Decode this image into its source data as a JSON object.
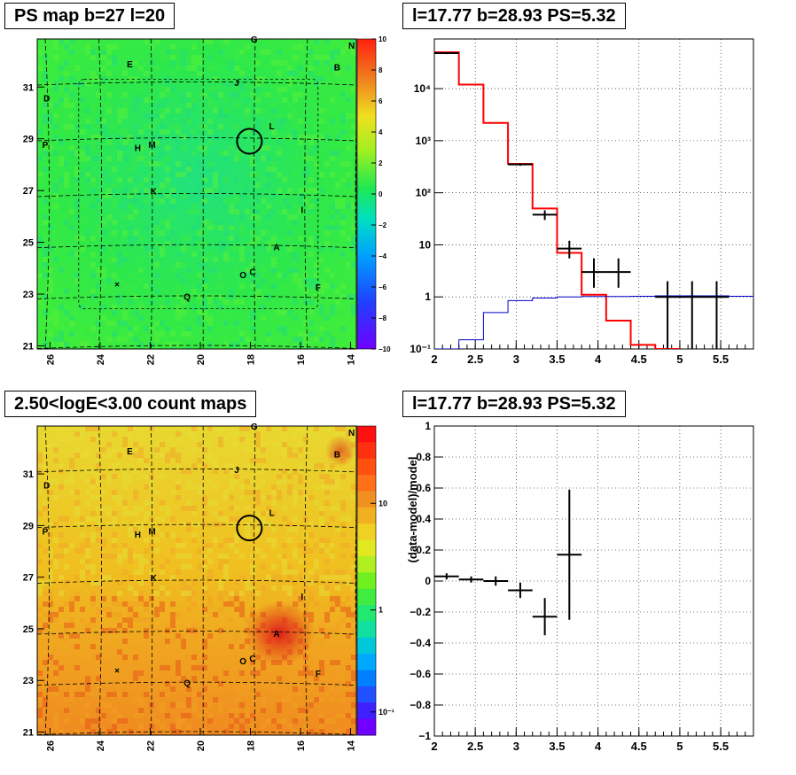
{
  "panels": {
    "top_left": {
      "title": "PS map b=27 l=20"
    },
    "bottom_left": {
      "title": "2.50<logE<3.00 count maps"
    },
    "top_right": {
      "title": "l=17.77 b=28.93 PS=5.32"
    },
    "bottom_right": {
      "title": "l=17.77 b=28.93 PS=5.32"
    }
  },
  "maps": {
    "x_ticks": [
      "26",
      "24",
      "22",
      "20",
      "18",
      "16",
      "14"
    ],
    "y_ticks": [
      "31",
      "29",
      "27",
      "25",
      "23",
      "21"
    ],
    "source_labels": [
      "G",
      "N",
      "E",
      "B",
      "D",
      "J",
      "L",
      "P",
      "H",
      "M",
      "K",
      "I",
      "A",
      "O",
      "C",
      "F",
      "Q",
      "×"
    ],
    "top_colorbar_ticks": [
      "10",
      "8",
      "6",
      "4",
      "2",
      "0",
      "−2",
      "−4",
      "−6",
      "−8",
      "−10"
    ],
    "bottom_colorbar_ticks": [
      "10",
      "1",
      "10⁻¹"
    ],
    "top_colors": {
      "background": "#2ee84a",
      "bright": "#4ff03a",
      "dim": "#22e07a"
    },
    "bottom_colors": {
      "background": "#f0c020",
      "warm": "#f08a20",
      "hot": "#e8401a"
    }
  },
  "chart_data": [
    {
      "type": "line",
      "title": "l=17.77 b=28.93 PS=5.32",
      "xlabel": "",
      "ylabel": "",
      "xlim": [
        2,
        5.9
      ],
      "ylim": [
        0.1,
        90000
      ],
      "log_y": true,
      "grid": true,
      "x_ticks": [
        "2",
        "2.5",
        "3",
        "3.5",
        "4",
        "4.5",
        "5",
        "5.5"
      ],
      "y_ticks": [
        "10⁻¹",
        "1",
        "10",
        "10²",
        "10³",
        "10⁴"
      ],
      "series": [
        {
          "color": "#ff0000",
          "style": "step",
          "edges": [
            2,
            2.3,
            2.6,
            2.9,
            3.2,
            3.5,
            3.8,
            4.1,
            4.4,
            4.7,
            5.0
          ],
          "values": [
            50000,
            12000,
            2200,
            360,
            50,
            7,
            1.1,
            0.35,
            0.12,
            0.1
          ]
        },
        {
          "color": "#0000cc",
          "style": "step",
          "edges": [
            2,
            2.3,
            2.6,
            2.9,
            3.2,
            3.5,
            3.8,
            4.1,
            4.4,
            4.7,
            5.0,
            5.3,
            5.6,
            5.9
          ],
          "values": [
            0.1,
            0.15,
            0.5,
            0.85,
            0.95,
            1.0,
            1.02,
            1.02,
            1.03,
            1.05,
            1.05,
            1.05,
            1.03
          ]
        },
        {
          "color": "#000000",
          "style": "errorbar",
          "points": [
            {
              "x": 2.15,
              "y": 48000,
              "xerr": 0.15,
              "ylo": 46000,
              "yhi": 50000
            },
            {
              "x": 3.05,
              "y": 350,
              "xerr": 0.15,
              "ylo": 330,
              "yhi": 370
            },
            {
              "x": 3.35,
              "y": 38,
              "xerr": 0.15,
              "ylo": 30,
              "yhi": 46
            },
            {
              "x": 3.65,
              "y": 8.5,
              "xerr": 0.15,
              "ylo": 5.5,
              "yhi": 12
            },
            {
              "x": 3.95,
              "y": 3,
              "xerr": 0.15,
              "ylo": 1.5,
              "yhi": 5.5
            },
            {
              "x": 4.25,
              "y": 3,
              "xerr": 0.15,
              "ylo": 1.5,
              "yhi": 5.5
            },
            {
              "x": 4.85,
              "y": 1,
              "xerr": 0.15,
              "ylo": 0.1,
              "yhi": 2
            },
            {
              "x": 5.15,
              "y": 1,
              "xerr": 0.15,
              "ylo": 0.1,
              "yhi": 2
            },
            {
              "x": 5.45,
              "y": 1,
              "xerr": 0.15,
              "ylo": 0.1,
              "yhi": 2
            }
          ]
        }
      ]
    },
    {
      "type": "scatter",
      "title": "l=17.77 b=28.93 PS=5.32",
      "xlabel": "",
      "ylabel": "(data-model)/model",
      "xlim": [
        2,
        5.9
      ],
      "ylim": [
        -1,
        1
      ],
      "grid": true,
      "x_ticks": [
        "2",
        "2.5",
        "3",
        "3.5",
        "4",
        "4.5",
        "5",
        "5.5"
      ],
      "y_ticks": [
        "1",
        "0.8",
        "0.6",
        "0.4",
        "0.2",
        "0",
        "−0.2",
        "−0.4",
        "−0.6",
        "−0.8",
        "−1"
      ],
      "series": [
        {
          "color": "#000000",
          "style": "errorbar",
          "points": [
            {
              "x": 2.15,
              "y": 0.03,
              "xerr": 0.15,
              "yerr": 0.02
            },
            {
              "x": 2.45,
              "y": 0.01,
              "xerr": 0.15,
              "yerr": 0.02
            },
            {
              "x": 2.75,
              "y": 0.0,
              "xerr": 0.15,
              "yerr": 0.03
            },
            {
              "x": 3.05,
              "y": -0.06,
              "xerr": 0.15,
              "yerr": 0.05
            },
            {
              "x": 3.35,
              "y": -0.23,
              "xerr": 0.15,
              "yerr": 0.12
            },
            {
              "x": 3.65,
              "y": 0.17,
              "xerr": 0.15,
              "yerr": 0.42
            }
          ]
        }
      ]
    }
  ]
}
